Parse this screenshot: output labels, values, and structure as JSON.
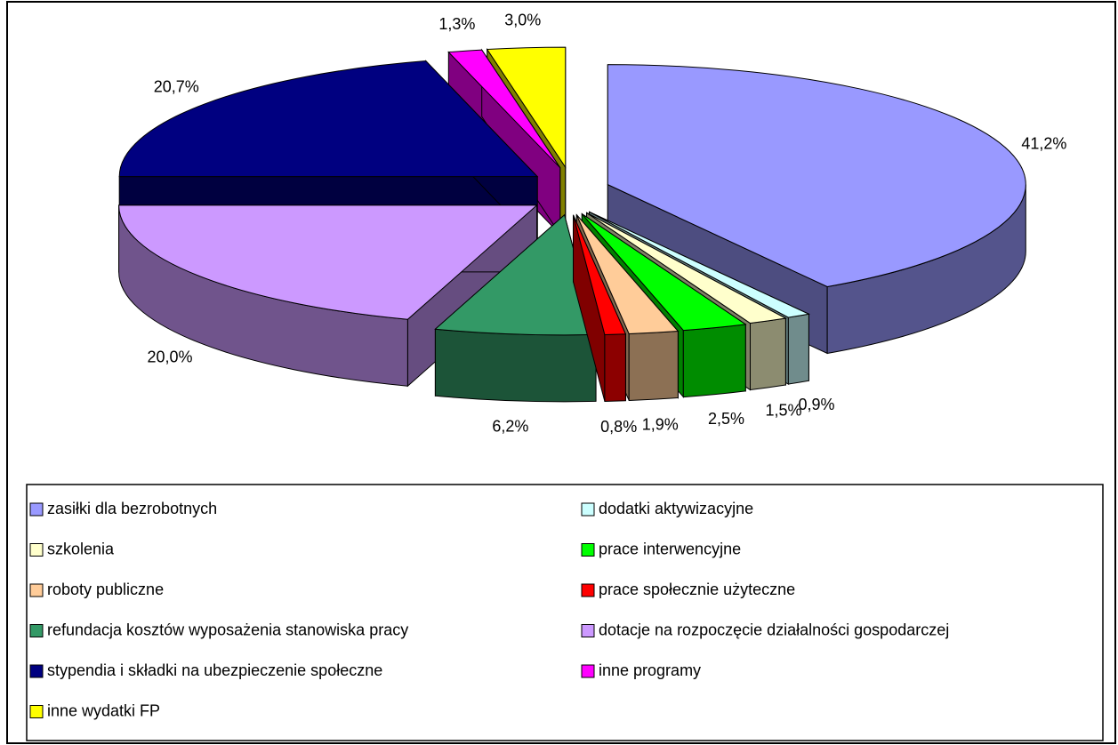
{
  "chart_data": {
    "type": "pie",
    "categories": [
      "zasiłki dla bezrobotnych",
      "dodatki aktywizacyjne",
      "szkolenia",
      "prace interwencyjne",
      "roboty publiczne",
      "prace społecznie użyteczne",
      "refundacja kosztów wyposażenia stanowiska pracy",
      "dotacje na rozpoczęcie działalności gospodarczej",
      "stypendia i składki na ubezpieczenie społeczne",
      "inne programy",
      "inne wydatki FP"
    ],
    "values": [
      41.2,
      0.9,
      1.5,
      2.5,
      1.9,
      0.8,
      6.2,
      20.0,
      20.7,
      1.3,
      3.0
    ],
    "value_labels": [
      "41,2%",
      "0,9%",
      "1,5%",
      "2,5%",
      "1,9%",
      "0,8%",
      "6,2%",
      "20,0%",
      "20,7%",
      "1,3%",
      "3,0%"
    ],
    "colors": [
      "#9999FF",
      "#CCFFFF",
      "#FFFFCC",
      "#00FF00",
      "#FFCC99",
      "#FF0000",
      "#339966",
      "#CC99FF",
      "#000080",
      "#FF00FF",
      "#FFFF00"
    ]
  }
}
